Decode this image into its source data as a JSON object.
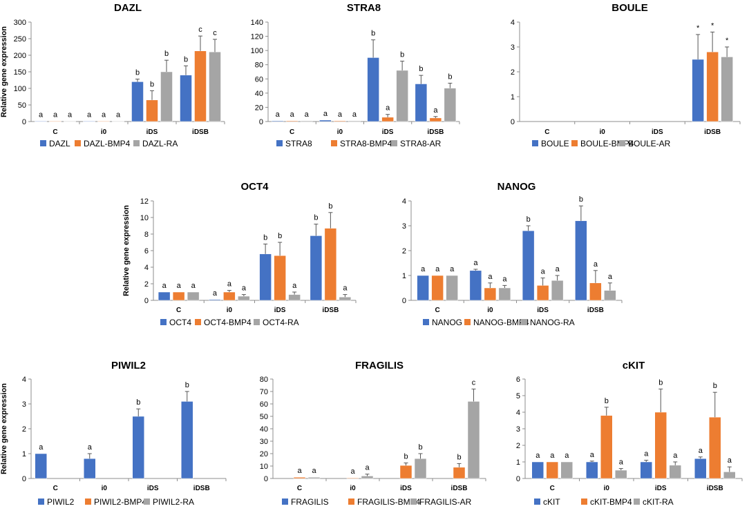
{
  "figure": {
    "ylabel": "Relative gene expression"
  },
  "colors": {
    "s1": "#4472C4",
    "s2": "#ED7D31",
    "s3": "#A5A5A5",
    "axis": "#8c8c8c",
    "text": "#000000"
  },
  "chart_data": [
    {
      "type": "bar",
      "title": "DAZL",
      "categories": [
        "C",
        "i0",
        "iDS",
        "iDSB"
      ],
      "ylim": [
        0,
        300
      ],
      "yticks": [
        0,
        50,
        100,
        150,
        200,
        250,
        300
      ],
      "ylabel": "Relative gene expression",
      "series": [
        {
          "name": "DAZL",
          "values": [
            1,
            1,
            120,
            140
          ],
          "errors": [
            0,
            0,
            8,
            28
          ],
          "labels": [
            "a",
            "a",
            "b",
            "b"
          ]
        },
        {
          "name": "DAZL-BMP4",
          "values": [
            1,
            1,
            65,
            213
          ],
          "errors": [
            0,
            0,
            28,
            45
          ],
          "labels": [
            "a",
            "a",
            "b",
            "c"
          ]
        },
        {
          "name": "DAZL-RA",
          "values": [
            1,
            1,
            150,
            210
          ],
          "errors": [
            0,
            0,
            35,
            38
          ],
          "labels": [
            "a",
            "a",
            "b",
            "c"
          ]
        }
      ]
    },
    {
      "type": "bar",
      "title": "STRA8",
      "categories": [
        "C",
        "i0",
        "iDS",
        "iDSB"
      ],
      "ylim": [
        0,
        140
      ],
      "yticks": [
        0,
        20,
        40,
        60,
        80,
        100,
        120,
        140
      ],
      "ylabel": "",
      "series": [
        {
          "name": "STRA8",
          "values": [
            1,
            2,
            90,
            53
          ],
          "errors": [
            0,
            0,
            25,
            12
          ],
          "labels": [
            "a",
            "a",
            "b",
            "b"
          ]
        },
        {
          "name": "STRA8-BMP4",
          "values": [
            1,
            1,
            6,
            5
          ],
          "errors": [
            0,
            0,
            4,
            2
          ],
          "labels": [
            "a",
            "a",
            "a",
            "a"
          ]
        },
        {
          "name": "STRA8-AR",
          "values": [
            1,
            1,
            72,
            47
          ],
          "errors": [
            0,
            0,
            13,
            7
          ],
          "labels": [
            "a",
            "a",
            "b",
            "b"
          ]
        }
      ]
    },
    {
      "type": "bar",
      "title": "BOULE",
      "categories": [
        "C",
        "i0",
        "iDS",
        "iDSB"
      ],
      "ylim": [
        0,
        4
      ],
      "yticks": [
        0,
        1,
        2,
        3,
        4
      ],
      "ylabel": "",
      "series": [
        {
          "name": "BOULE",
          "values": [
            0,
            0,
            0,
            2.5
          ],
          "errors": [
            0,
            0,
            0,
            1.0
          ],
          "labels": [
            "",
            "",
            "",
            "*"
          ]
        },
        {
          "name": "BOULE-BMP4",
          "values": [
            0,
            0,
            0,
            2.8
          ],
          "errors": [
            0,
            0,
            0,
            0.8
          ],
          "labels": [
            "",
            "",
            "",
            "*"
          ]
        },
        {
          "name": "BOULE-AR",
          "values": [
            0,
            0,
            0,
            2.6
          ],
          "errors": [
            0,
            0,
            0,
            0.4
          ],
          "labels": [
            "",
            "",
            "",
            "*"
          ]
        }
      ]
    },
    {
      "type": "bar",
      "title": "OCT4",
      "categories": [
        "C",
        "i0",
        "iDS",
        "iDSB"
      ],
      "ylim": [
        0,
        12
      ],
      "yticks": [
        0,
        2,
        4,
        6,
        8,
        10,
        12
      ],
      "ylabel": "Relative gene expression",
      "series": [
        {
          "name": "OCT4",
          "values": [
            1,
            0.1,
            5.6,
            7.8
          ],
          "errors": [
            0,
            0,
            1.2,
            1.4
          ],
          "labels": [
            "a",
            "a",
            "b",
            "b"
          ]
        },
        {
          "name": "OCT4-BMP4",
          "values": [
            1,
            1,
            5.4,
            8.7
          ],
          "errors": [
            0,
            0.2,
            1.6,
            1.9
          ],
          "labels": [
            "a",
            "a",
            "b",
            "b"
          ]
        },
        {
          "name": "OCT4-RA",
          "values": [
            1,
            0.5,
            0.7,
            0.4
          ],
          "errors": [
            0,
            0.2,
            0.3,
            0.3
          ],
          "labels": [
            "a",
            "a",
            "a",
            "a"
          ]
        }
      ]
    },
    {
      "type": "bar",
      "title": "NANOG",
      "categories": [
        "C",
        "i0",
        "iDS",
        "iDSB"
      ],
      "ylim": [
        0,
        4
      ],
      "yticks": [
        0,
        1,
        2,
        3,
        4
      ],
      "ylabel": "",
      "series": [
        {
          "name": "NANOG",
          "values": [
            1,
            1.2,
            2.8,
            3.2
          ],
          "errors": [
            0,
            0.05,
            0.2,
            0.6
          ],
          "labels": [
            "a",
            "a",
            "b",
            "b"
          ]
        },
        {
          "name": "NANOG-BMP4",
          "values": [
            1,
            0.5,
            0.6,
            0.7
          ],
          "errors": [
            0,
            0.2,
            0.3,
            0.5
          ],
          "labels": [
            "a",
            "a",
            "a",
            "a"
          ]
        },
        {
          "name": "NANOG-RA",
          "values": [
            1,
            0.5,
            0.8,
            0.4
          ],
          "errors": [
            0,
            0.1,
            0.2,
            0.3
          ],
          "labels": [
            "a",
            "a",
            "a",
            "a"
          ]
        }
      ]
    },
    {
      "type": "bar",
      "title": "PIWIL2",
      "categories": [
        "C",
        "i0",
        "iDS",
        "iDSB"
      ],
      "ylim": [
        0,
        4
      ],
      "yticks": [
        0,
        1,
        2,
        3,
        4
      ],
      "ylabel": "Relative gene expression",
      "series": [
        {
          "name": "PIWIL2",
          "values": [
            1,
            0.8,
            2.5,
            3.1
          ],
          "errors": [
            0,
            0.2,
            0.3,
            0.4
          ],
          "labels": [
            "a",
            "a",
            "b",
            "b"
          ]
        },
        {
          "name": "PIWIL2-BMP4",
          "values": [
            0,
            0,
            0,
            0
          ],
          "errors": [
            0,
            0,
            0,
            0
          ],
          "labels": [
            "",
            "",
            "",
            ""
          ]
        },
        {
          "name": "PIWIL2-RA",
          "values": [
            0,
            0,
            0,
            0
          ],
          "errors": [
            0,
            0,
            0,
            0
          ],
          "labels": [
            "",
            "",
            "",
            ""
          ]
        }
      ]
    },
    {
      "type": "bar",
      "title": "FRAGILIS",
      "categories": [
        "C",
        "i0",
        "iDS",
        "iDSB"
      ],
      "ylim": [
        0,
        80
      ],
      "yticks": [
        0,
        10,
        20,
        30,
        40,
        50,
        60,
        70,
        80
      ],
      "ylabel": "",
      "series": [
        {
          "name": "FRAGILIS",
          "values": [
            0,
            0,
            0,
            0
          ],
          "errors": [
            0,
            0,
            0,
            0
          ],
          "labels": [
            "",
            "",
            "",
            ""
          ]
        },
        {
          "name": "FRAGILIS-BMP4",
          "values": [
            1,
            0.5,
            10.5,
            9
          ],
          "errors": [
            0,
            0,
            2,
            3
          ],
          "labels": [
            "a",
            "a",
            "b",
            "b"
          ]
        },
        {
          "name": "FRAGILIS-AR",
          "values": [
            1,
            2,
            16,
            62
          ],
          "errors": [
            0,
            1.5,
            4,
            10
          ],
          "labels": [
            "a",
            "a",
            "b",
            "c"
          ]
        }
      ]
    },
    {
      "type": "bar",
      "title": "cKIT",
      "categories": [
        "C",
        "i0",
        "iDS",
        "iDSB"
      ],
      "ylim": [
        0,
        6
      ],
      "yticks": [
        0,
        1,
        2,
        3,
        4,
        5,
        6
      ],
      "ylabel": "",
      "series": [
        {
          "name": "cKIT",
          "values": [
            1,
            1,
            1,
            1.2
          ],
          "errors": [
            0,
            0.05,
            0.1,
            0.1
          ],
          "labels": [
            "a",
            "a",
            "a",
            "a"
          ]
        },
        {
          "name": "cKIT-BMP4",
          "values": [
            1,
            3.8,
            4.0,
            3.7
          ],
          "errors": [
            0,
            0.5,
            1.4,
            1.5
          ],
          "labels": [
            "a",
            "b",
            "b",
            "b"
          ]
        },
        {
          "name": "cKIT-RA",
          "values": [
            1,
            0.5,
            0.8,
            0.4
          ],
          "errors": [
            0,
            0.1,
            0.2,
            0.3
          ],
          "labels": [
            "a",
            "a",
            "a",
            "a"
          ]
        }
      ]
    }
  ]
}
